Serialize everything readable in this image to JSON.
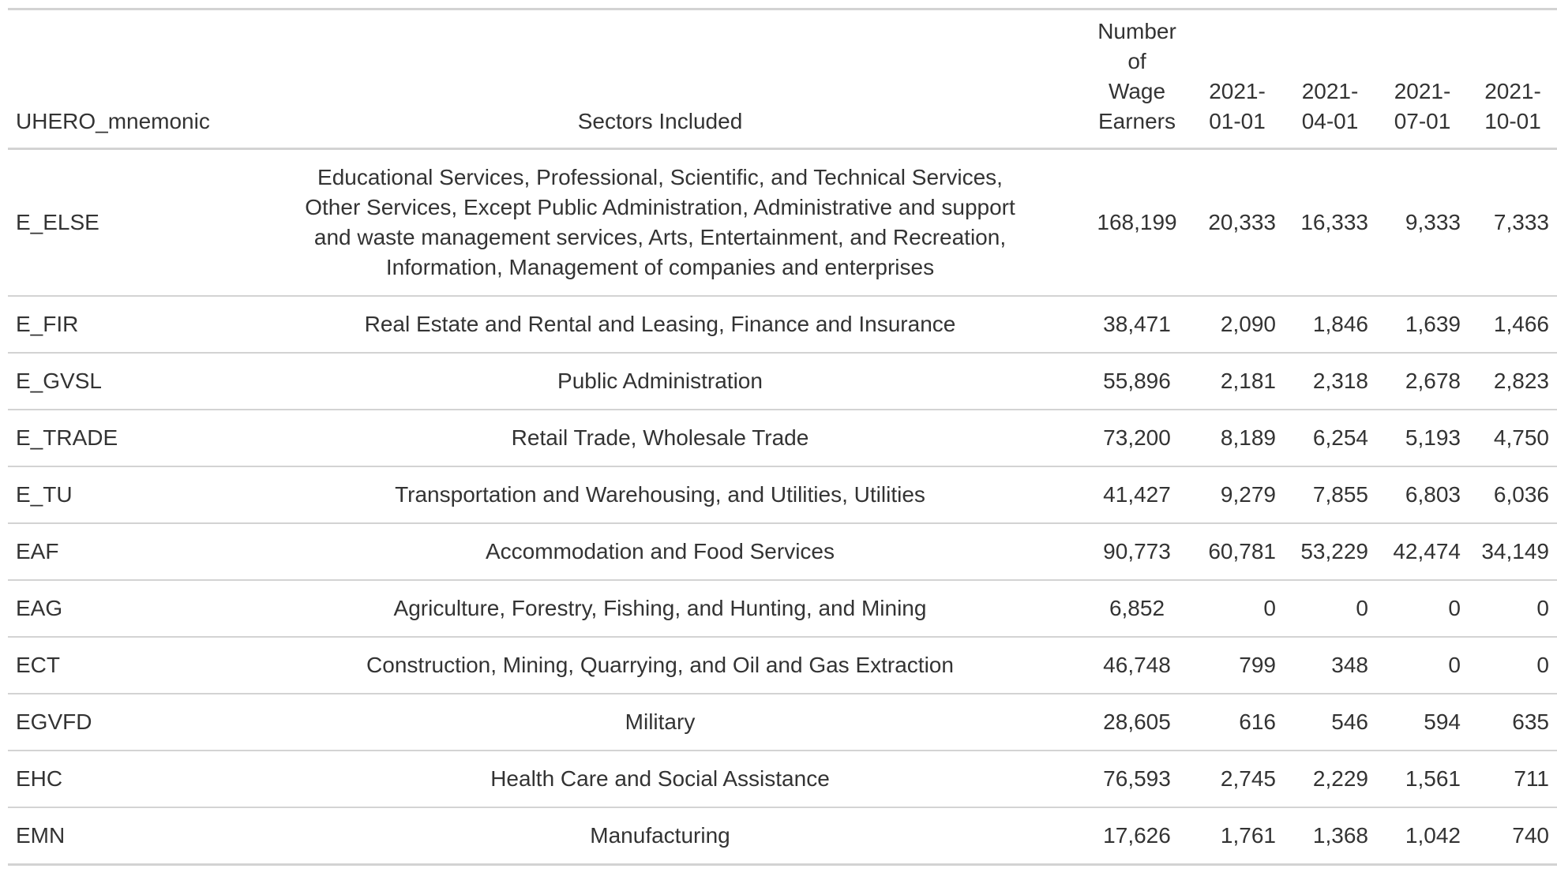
{
  "table": {
    "headers": {
      "mnemonic": "UHERO_mnemonic",
      "sectors": "Sectors Included",
      "earners_line1": "Number",
      "earners_line2": "of",
      "earners_line3": "Wage",
      "earners_line4": "Earners",
      "q1_line1": "2021-",
      "q1_line2": "01-01",
      "q2_line1": "2021-",
      "q2_line2": "04-01",
      "q3_line1": "2021-",
      "q3_line2": "07-01",
      "q4_line1": "2021-",
      "q4_line2": "10-01"
    },
    "rows": [
      {
        "mnemonic": "E_ELSE",
        "sectors_line1": "Educational Services, Professional, Scientific, and Technical Services,",
        "sectors_line2": "Other Services, Except Public Administration, Administrative and support",
        "sectors_line3": "and waste management services, Arts, Entertainment, and Recreation,",
        "sectors_line4": "Information, Management of companies and enterprises",
        "earners": "168,199",
        "q1": "20,333",
        "q2": "16,333",
        "q3": "9,333",
        "q4": "7,333"
      },
      {
        "mnemonic": "E_FIR",
        "sectors": "Real Estate and Rental and Leasing, Finance and Insurance",
        "earners": "38,471",
        "q1": "2,090",
        "q2": "1,846",
        "q3": "1,639",
        "q4": "1,466"
      },
      {
        "mnemonic": "E_GVSL",
        "sectors": "Public Administration",
        "earners": "55,896",
        "q1": "2,181",
        "q2": "2,318",
        "q3": "2,678",
        "q4": "2,823"
      },
      {
        "mnemonic": "E_TRADE",
        "sectors": "Retail Trade, Wholesale Trade",
        "earners": "73,200",
        "q1": "8,189",
        "q2": "6,254",
        "q3": "5,193",
        "q4": "4,750"
      },
      {
        "mnemonic": "E_TU",
        "sectors": "Transportation and Warehousing, and Utilities, Utilities",
        "earners": "41,427",
        "q1": "9,279",
        "q2": "7,855",
        "q3": "6,803",
        "q4": "6,036"
      },
      {
        "mnemonic": "EAF",
        "sectors": "Accommodation and Food Services",
        "earners": "90,773",
        "q1": "60,781",
        "q2": "53,229",
        "q3": "42,474",
        "q4": "34,149"
      },
      {
        "mnemonic": "EAG",
        "sectors": "Agriculture, Forestry, Fishing, and Hunting, and Mining",
        "earners": "6,852",
        "q1": "0",
        "q2": "0",
        "q3": "0",
        "q4": "0"
      },
      {
        "mnemonic": "ECT",
        "sectors": "Construction, Mining, Quarrying, and Oil and Gas Extraction",
        "earners": "46,748",
        "q1": "799",
        "q2": "348",
        "q3": "0",
        "q4": "0"
      },
      {
        "mnemonic": "EGVFD",
        "sectors": "Military",
        "earners": "28,605",
        "q1": "616",
        "q2": "546",
        "q3": "594",
        "q4": "635"
      },
      {
        "mnemonic": "EHC",
        "sectors": "Health Care and Social Assistance",
        "earners": "76,593",
        "q1": "2,745",
        "q2": "2,229",
        "q3": "1,561",
        "q4": "711"
      },
      {
        "mnemonic": "EMN",
        "sectors": "Manufacturing",
        "earners": "17,626",
        "q1": "1,761",
        "q2": "1,368",
        "q3": "1,042",
        "q4": "740"
      }
    ]
  }
}
